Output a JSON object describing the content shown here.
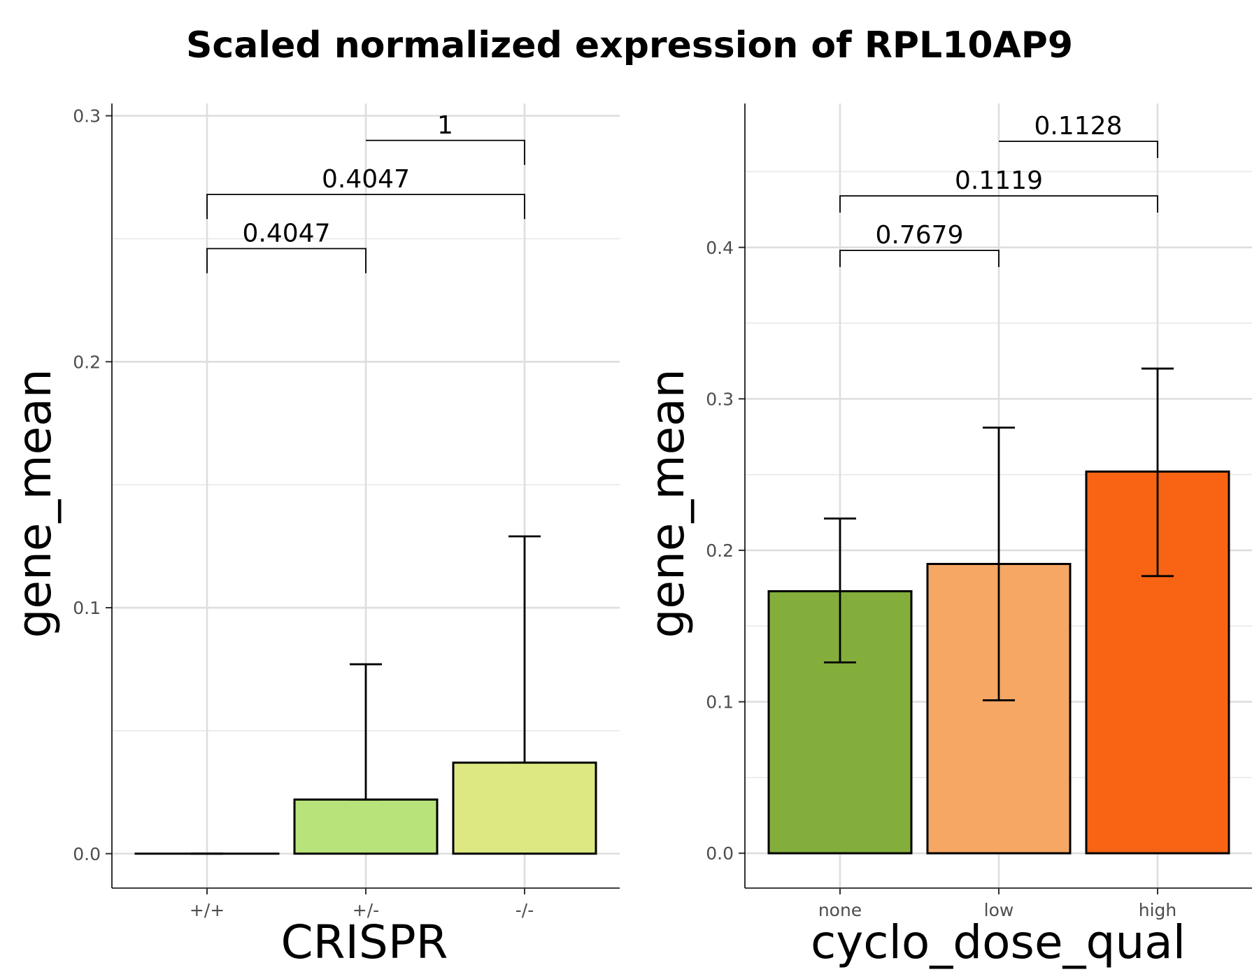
{
  "title": "Scaled normalized expression of RPL10AP9",
  "chart_data": [
    {
      "type": "bar",
      "xlabel": "CRISPR",
      "ylabel": "gene_mean",
      "categories": [
        "+/+",
        "+/-",
        "-/-"
      ],
      "values": [
        0.0,
        0.022,
        0.037
      ],
      "error_low": [
        0.0,
        0.022,
        0.037
      ],
      "error_high": [
        0.0,
        0.077,
        0.129
      ],
      "colors": [
        "#d9f0a3",
        "#b8e27a",
        "#dde883"
      ],
      "ylim": [
        -0.014,
        0.305
      ],
      "yticks": [
        "0.0",
        "0.1",
        "0.2",
        "0.3"
      ],
      "ytick_values": [
        0.0,
        0.1,
        0.2,
        0.3
      ],
      "grid": true,
      "comparisons": [
        {
          "from": 0,
          "to": 1,
          "label": "0.4047",
          "y": 0.246,
          "drop_left": 0.236,
          "drop_right": 0.236
        },
        {
          "from": 0,
          "to": 2,
          "label": "0.4047",
          "y": 0.268,
          "drop_left": 0.258,
          "drop_right": 0.258
        },
        {
          "from": 1,
          "to": 2,
          "label": "1",
          "y": 0.29,
          "drop_left": 0.29,
          "drop_right": 0.28
        }
      ]
    },
    {
      "type": "bar",
      "xlabel": "cyclo_dose_qual",
      "ylabel": "gene_mean",
      "categories": [
        "none",
        "low",
        "high"
      ],
      "values": [
        0.173,
        0.191,
        0.252
      ],
      "error_low": [
        0.126,
        0.101,
        0.183
      ],
      "error_high": [
        0.221,
        0.281,
        0.32
      ],
      "colors": [
        "#83ae3c",
        "#f5a763",
        "#f86414"
      ],
      "ylim": [
        -0.023,
        0.495
      ],
      "yticks": [
        "0.0",
        "0.1",
        "0.2",
        "0.3",
        "0.4"
      ],
      "ytick_values": [
        0.0,
        0.1,
        0.2,
        0.3,
        0.4
      ],
      "grid": true,
      "comparisons": [
        {
          "from": 0,
          "to": 1,
          "label": "0.7679",
          "y": 0.398,
          "drop_left": 0.387,
          "drop_right": 0.387
        },
        {
          "from": 0,
          "to": 2,
          "label": "0.1119",
          "y": 0.434,
          "drop_left": 0.423,
          "drop_right": 0.423
        },
        {
          "from": 1,
          "to": 2,
          "label": "0.1128",
          "y": 0.47,
          "drop_left": 0.47,
          "drop_right": 0.459
        }
      ]
    }
  ]
}
